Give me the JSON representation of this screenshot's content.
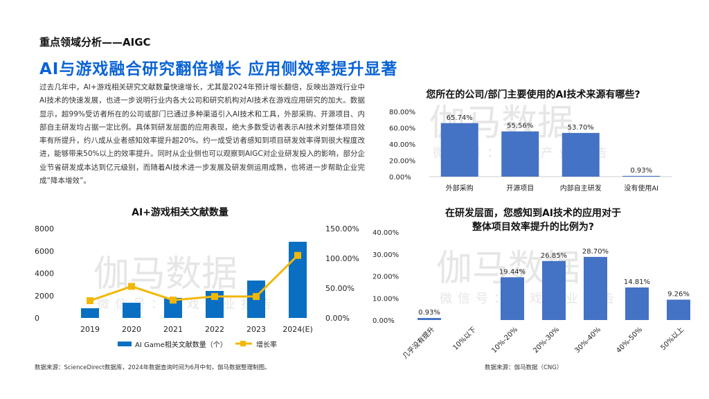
{
  "section_title": "重点领域分析——AIGC",
  "headline": "AI与游戏融合研究翻倍增长   应用侧效率提升显著",
  "body_text": "过去几年中，AI+游戏相关研究文献数量快速增长，尤其是2024年预计增长翻倍，反映出游戏行业中AI技术的快速发展，也进一步说明行业内各大公司和研究机构对AI技术在游戏应用研究的加大。数据显示，超99%受访者所在的公司或部门已通过多种渠道引入AI技术和工具，外部采购、开源项目、内部自主研发均占据一定比例。具体到研发层面的应用表现，绝大多数受访者表示AI技术对整体项目效率有所提升，约八成从业者感知效率提升超20%。约一成受访者感知到项目研发效率得到很大程度改进，能够带来50%以上的效率提升。同时从企业侧也可以观察到AIGC对企业研发投入的影响，部分企业节省研发成本达到亿元级别，而随着AI技术进一步发展及研发侧运用成熟，也将进一步帮助企业完成“降本增效”。",
  "watermark": {
    "main": "伽马数据",
    "sub": "微信号：游戏产业报告"
  },
  "chart_data": [
    {
      "type": "bar+line",
      "title": "AI+游戏相关文献数量",
      "categories": [
        "2019",
        "2020",
        "2021",
        "2022",
        "2023",
        "2024(E)"
      ],
      "series": [
        {
          "name": "AI Game相关文献数量（个）",
          "type": "bar",
          "axis": "left",
          "values": [
            870,
            1360,
            1800,
            2420,
            3350,
            6820
          ],
          "color": "#0a6fc2"
        },
        {
          "name": "增长率",
          "type": "line",
          "axis": "right",
          "values": [
            29,
            53,
            30,
            36,
            36,
            105
          ],
          "color": "#f2b705"
        }
      ],
      "ylim_left": [
        0,
        8000
      ],
      "yticks_left": [
        "8000",
        "6000",
        "4000",
        "2000",
        "0"
      ],
      "ylim_right": [
        0,
        150
      ],
      "yticks_right": [
        "150.00%",
        "100.00%",
        "50.00%",
        "0.00%"
      ],
      "legend": "bottom",
      "source": "数据来源：ScienceDirect数据库，2024年数据查询时间为6月中旬，伽马数据整理制图。"
    },
    {
      "type": "bar",
      "title": "您所在的公司/部门主要使用的AI技术来源有哪些?",
      "categories": [
        "外部采购",
        "开源项目",
        "内部自主研发",
        "没有使用AI"
      ],
      "values": [
        65.74,
        55.56,
        53.7,
        0.93
      ],
      "labels": [
        "65.74%",
        "55.56%",
        "53.70%",
        "0.93%"
      ],
      "ylim": [
        0,
        80
      ],
      "yticks": [
        "80.00%",
        "60.00%",
        "40.00%",
        "20.00%",
        "0.00%"
      ],
      "color": "#4472c4"
    },
    {
      "type": "bar",
      "title": [
        "在研发层面，您感知到AI技术的应用对于",
        "整体项目效率提升的比例为?"
      ],
      "categories": [
        "几乎没有提升",
        "10%以下",
        "10%-20%",
        "20%-30%",
        "30%-40%",
        "40%-50%",
        "50%以上"
      ],
      "values": [
        0.93,
        0,
        19.44,
        26.85,
        28.7,
        14.81,
        9.26
      ],
      "labels": [
        "0.93%",
        "",
        "19.44%",
        "26.85%",
        "28.70%",
        "14.81%",
        "9.26%"
      ],
      "ylim": [
        0,
        40
      ],
      "yticks": [
        "40.00%",
        "30.00%",
        "20.00%",
        "10.00%",
        "0.00%"
      ],
      "color": "#4472c4",
      "source": "数据来源：伽马数据（CNG）"
    }
  ]
}
